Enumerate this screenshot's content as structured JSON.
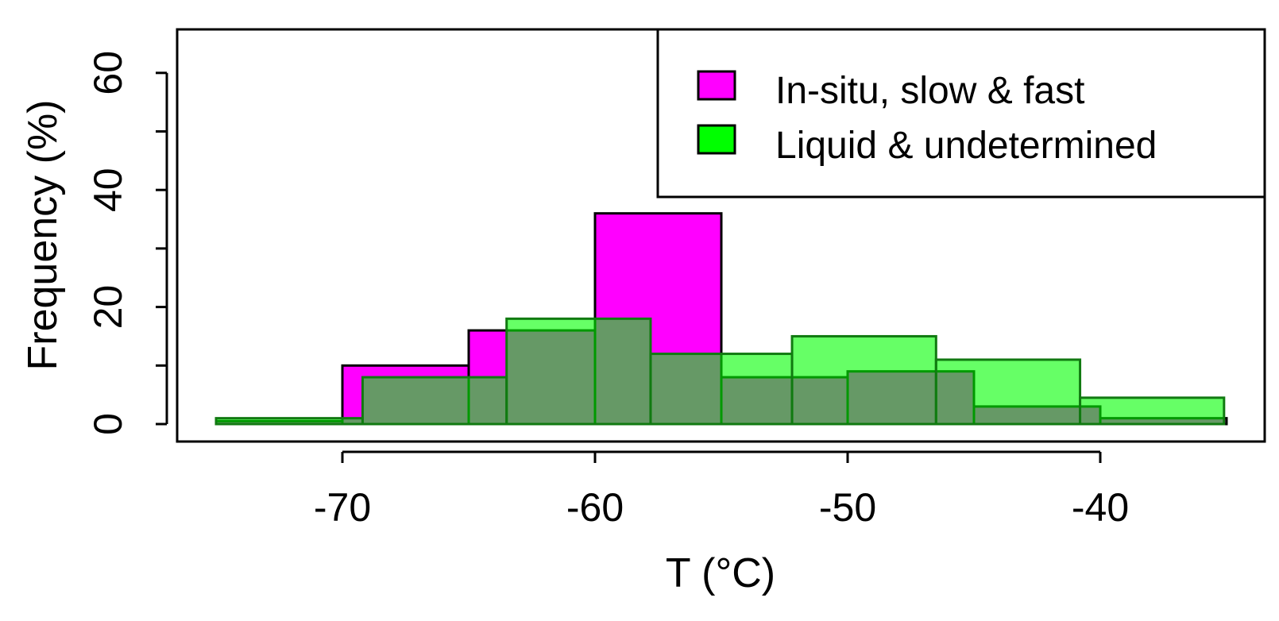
{
  "chart_data": {
    "type": "bar",
    "xlabel": "T (°C)",
    "ylabel": "Frequency (%)",
    "xlim": [
      -75,
      -35
    ],
    "ylim": [
      0,
      60
    ],
    "xticks": [
      -70,
      -60,
      -50,
      -40
    ],
    "yticks": [
      0,
      20,
      40,
      60
    ],
    "legend_position": "top-right",
    "series": [
      {
        "name": "In-situ, slow & fast",
        "color": "#ff00ff",
        "bins": [
          {
            "x0": -75,
            "x1": -70,
            "value": 0.5
          },
          {
            "x0": -70,
            "x1": -65,
            "value": 10
          },
          {
            "x0": -65,
            "x1": -60,
            "value": 16
          },
          {
            "x0": -60,
            "x1": -55,
            "value": 36
          },
          {
            "x0": -55,
            "x1": -50,
            "value": 8
          },
          {
            "x0": -50,
            "x1": -45,
            "value": 9
          },
          {
            "x0": -45,
            "x1": -40,
            "value": 3
          },
          {
            "x0": -40,
            "x1": -35,
            "value": 1
          }
        ]
      },
      {
        "name": "Liquid & undetermined",
        "color": "#00ff00",
        "bins": [
          {
            "x0": -75,
            "x1": -69.2,
            "value": 1
          },
          {
            "x0": -69.2,
            "x1": -63.5,
            "value": 8
          },
          {
            "x0": -63.5,
            "x1": -57.8,
            "value": 18
          },
          {
            "x0": -57.8,
            "x1": -52.2,
            "value": 12
          },
          {
            "x0": -52.2,
            "x1": -46.5,
            "value": 15
          },
          {
            "x0": -46.5,
            "x1": -40.8,
            "value": 11
          },
          {
            "x0": -40.8,
            "x1": -35.1,
            "value": 4.5
          }
        ]
      }
    ]
  }
}
